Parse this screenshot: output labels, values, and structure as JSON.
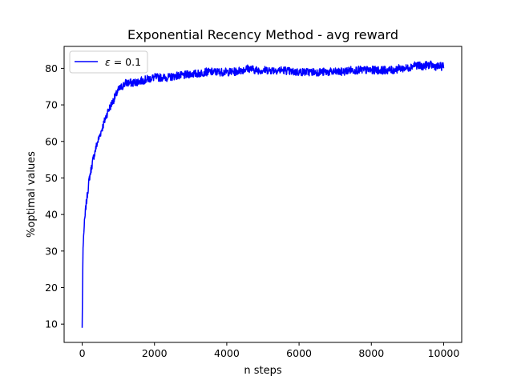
{
  "chart_data": {
    "type": "line",
    "title": "Exponential Recency Method - avg reward",
    "xlabel": "n steps",
    "ylabel": "%optimal values",
    "xlim": [
      -500,
      10500
    ],
    "ylim": [
      5,
      86
    ],
    "xticks": [
      0,
      2000,
      4000,
      6000,
      8000,
      10000
    ],
    "xtick_labels": [
      "0",
      "2000",
      "4000",
      "6000",
      "8000",
      "10000"
    ],
    "yticks": [
      10,
      20,
      30,
      40,
      50,
      60,
      70,
      80
    ],
    "ytick_labels": [
      "10",
      "20",
      "30",
      "40",
      "50",
      "60",
      "70",
      "80"
    ],
    "grid": false,
    "legend": {
      "position": "upper-left",
      "entries": [
        {
          "label_symbol": "ε",
          "label_rest": " = 0.1"
        }
      ]
    },
    "series": [
      {
        "name": "ε = 0.1",
        "color": "#0000ff",
        "x": [
          0,
          20,
          50,
          100,
          150,
          200,
          300,
          400,
          500,
          600,
          700,
          800,
          900,
          1000,
          1100,
          1200,
          1400,
          1600,
          1800,
          2000,
          2200,
          2400,
          2600,
          2800,
          3000,
          3200,
          3400,
          3600,
          3800,
          4000,
          4200,
          4400,
          4600,
          4800,
          5000,
          5200,
          5400,
          5600,
          5800,
          6000,
          6200,
          6400,
          6600,
          6800,
          7000,
          7200,
          7400,
          7600,
          7800,
          8000,
          8200,
          8400,
          8600,
          8800,
          9000,
          9200,
          9400,
          9600,
          9800,
          10000
        ],
        "y": [
          9,
          30,
          36,
          42,
          46,
          50,
          55,
          59,
          62,
          65,
          68,
          70,
          72,
          74,
          75,
          76,
          76,
          76.5,
          77,
          77.5,
          77.5,
          77.5,
          78,
          78,
          78.5,
          78.5,
          79,
          79,
          79,
          79,
          79,
          79.5,
          80,
          79.5,
          79.5,
          79.5,
          79.5,
          79.5,
          79,
          79,
          79,
          79,
          79,
          79,
          79,
          79,
          79.5,
          79.5,
          79.5,
          79.5,
          79.5,
          79.5,
          79.5,
          80,
          80,
          81,
          80.5,
          81,
          80.5,
          80.5
        ],
        "noise_amplitude": 1.1
      }
    ]
  }
}
